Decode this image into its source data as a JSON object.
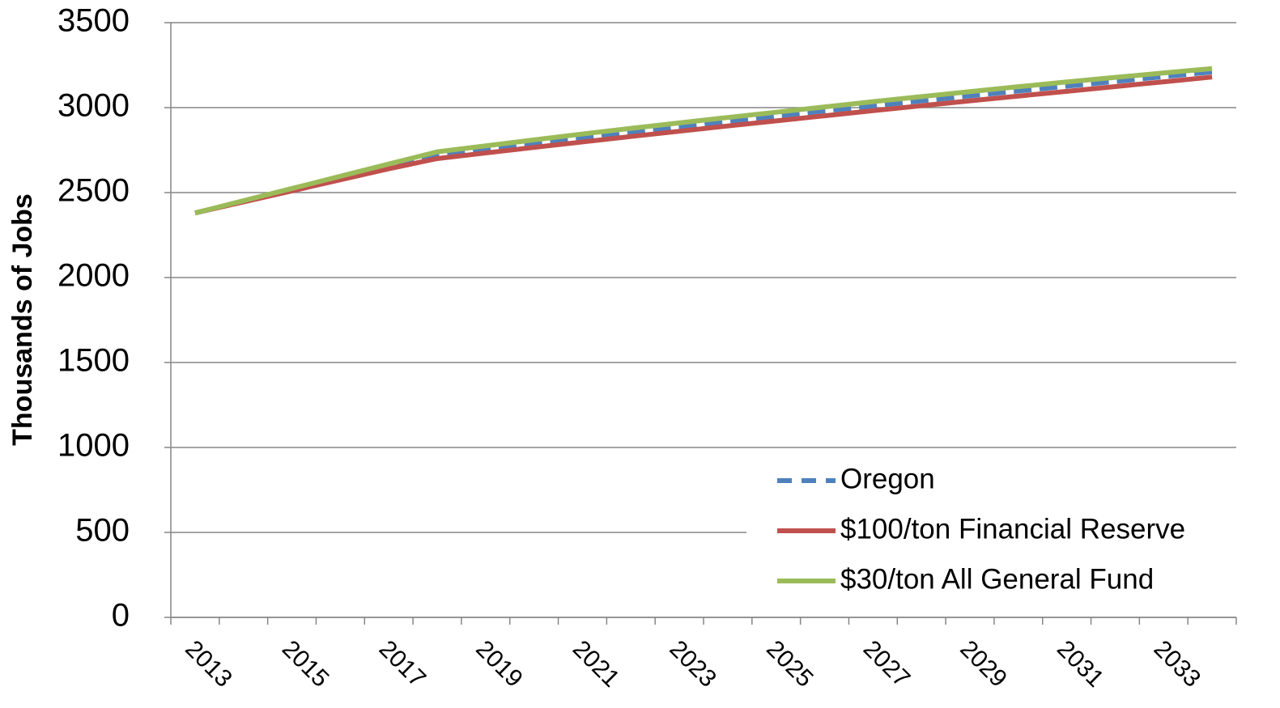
{
  "chart_data": {
    "type": "line",
    "y_label": "Thousands of Jobs",
    "categories": [
      "2013",
      null,
      "2015",
      null,
      "2017",
      null,
      "2019",
      null,
      "2021",
      null,
      "2023",
      null,
      "2025",
      null,
      "2027",
      null,
      "2029",
      null,
      "2031",
      null,
      "2033",
      null
    ],
    "series": [
      {
        "name": "Oregon",
        "color": "#4f81bd",
        "dash": true,
        "values": [
          2380,
          2448,
          2516,
          2584,
          2652,
          2720,
          2754,
          2788,
          2821,
          2854,
          2886,
          2918,
          2949,
          2980,
          3010,
          3040,
          3069,
          3098,
          3126,
          3154,
          3182,
          3210
        ]
      },
      {
        "name": "$100/ton Financial Reserve",
        "color": "#c0504d",
        "dash": false,
        "values": [
          2380,
          2445,
          2510,
          2575,
          2640,
          2700,
          2733,
          2766,
          2798,
          2830,
          2861,
          2892,
          2922,
          2952,
          2982,
          3011,
          3040,
          3068,
          3096,
          3124,
          3152,
          3180
        ]
      },
      {
        "name": "$30/ton All General Fund",
        "color": "#9bbb59",
        "dash": false,
        "values": [
          2380,
          2452,
          2524,
          2596,
          2668,
          2740,
          2775,
          2810,
          2845,
          2878,
          2910,
          2942,
          2973,
          3004,
          3035,
          3065,
          3094,
          3123,
          3151,
          3178,
          3204,
          3230
        ]
      }
    ],
    "ylim": [
      0,
      3500
    ],
    "yticks": [
      0,
      500,
      1000,
      1500,
      2000,
      2500,
      3000,
      3500
    ],
    "grid": true,
    "legend": "lower right"
  }
}
